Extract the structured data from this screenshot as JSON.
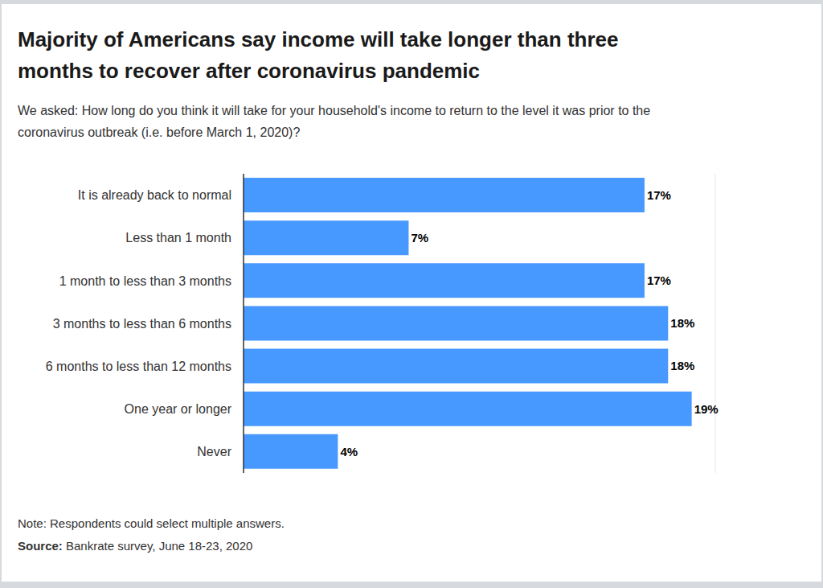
{
  "chart_data": {
    "type": "bar",
    "orientation": "horizontal",
    "title": "Majority of Americans say income will take longer than three months to recover after coronavirus pandemic",
    "subtitle": "We asked: How long do you think it will take for your household's income to return to the level it was prior to the coronavirus outbreak (i.e. before March 1, 2020)?",
    "note": "Note: Respondents could select multiple answers.",
    "source": "Source: Bankrate survey, June 18-23, 2020",
    "categories": [
      "It is already back to normal",
      "Less than 1 month",
      "1 month to less than 3 months",
      "3 months to less than 6 months",
      "6 months to less than 12 months",
      "One year or longer",
      "Never"
    ],
    "values": [
      17,
      7,
      17,
      18,
      18,
      19,
      4
    ],
    "value_labels": [
      "17%",
      "7%",
      "17%",
      "18%",
      "18%",
      "19%",
      "4%"
    ],
    "data_labels": true,
    "color": "#4899ff",
    "xlim": [
      0,
      20
    ],
    "xticks": [
      0,
      10,
      20
    ],
    "grid": true,
    "tick_labels": "y"
  }
}
